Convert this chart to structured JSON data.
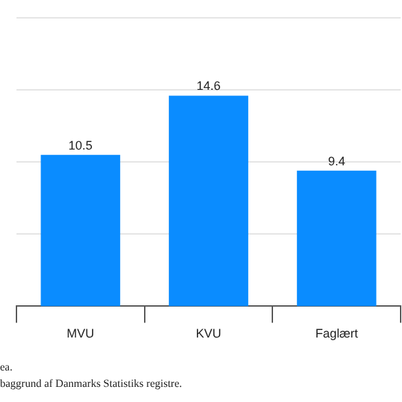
{
  "chart_data": {
    "type": "bar",
    "categories": [
      "MVU",
      "KVU",
      "Faglært"
    ],
    "values": [
      10.5,
      14.6,
      9.4
    ],
    "color": "#0a8cff",
    "ylim": [
      0,
      20
    ],
    "yticks": [
      {
        "value": 5,
        "label": null
      },
      {
        "value": 10,
        "label": null
      },
      {
        "value": 15,
        "label": null
      },
      {
        "value": 20,
        "label": null
      }
    ],
    "grid": "y",
    "data_labels": true,
    "tick_labels": "x",
    "annotations": [
      "ea.",
      "baggrund af Danmarks Statistiks registre."
    ]
  }
}
